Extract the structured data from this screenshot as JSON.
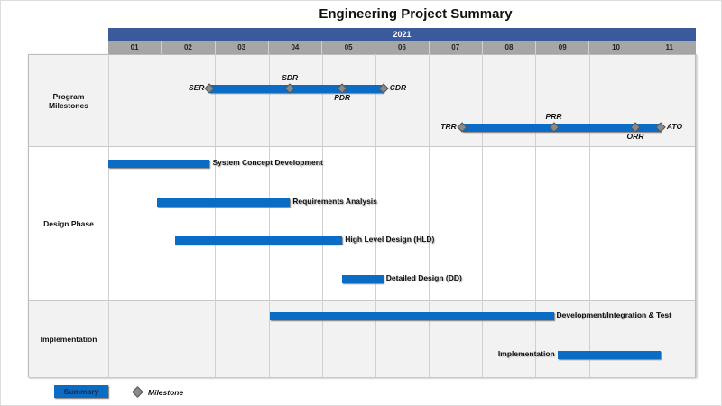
{
  "chart_data": {
    "type": "gantt",
    "title": "Engineering Project Summary",
    "year": "2021",
    "months": [
      "01",
      "02",
      "03",
      "04",
      "05",
      "06",
      "07",
      "08",
      "09",
      "10",
      "11"
    ],
    "x_unit": "months from start of 01",
    "rows": [
      {
        "name": "Program Milestones",
        "shade": "gray",
        "tasks": [
          {
            "label": "",
            "start": 1.9,
            "end": 5.15,
            "lane": 0,
            "milestones": [
              {
                "name": "SER",
                "at": 1.9,
                "pos": "left"
              },
              {
                "name": "SDR",
                "at": 3.4,
                "pos": "above"
              },
              {
                "name": "PDR",
                "at": 4.38,
                "pos": "below"
              },
              {
                "name": "CDR",
                "at": 5.15,
                "pos": "right"
              }
            ]
          },
          {
            "label": "",
            "start": 6.62,
            "end": 10.34,
            "lane": 1,
            "milestones": [
              {
                "name": "TRR",
                "at": 6.62,
                "pos": "left"
              },
              {
                "name": "PRR",
                "at": 8.34,
                "pos": "above"
              },
              {
                "name": "ORR",
                "at": 9.86,
                "pos": "below"
              },
              {
                "name": "ATO",
                "at": 10.34,
                "pos": "right"
              }
            ]
          }
        ]
      },
      {
        "name": "Design Phase",
        "shade": "white",
        "tasks": [
          {
            "label": "System Concept Development",
            "start": 0,
            "end": 1.9,
            "lane": 0
          },
          {
            "label": "Requirements Analysis",
            "start": 0.91,
            "end": 3.4,
            "lane": 1
          },
          {
            "label": "High Level Design (HLD)",
            "start": 1.25,
            "end": 4.38,
            "lane": 2
          },
          {
            "label": "Detailed Design (DD)",
            "start": 4.38,
            "end": 5.15,
            "lane": 3
          }
        ]
      },
      {
        "name": "Implementation",
        "shade": "gray",
        "tasks": [
          {
            "label": "Development/Integration & Test",
            "start": 3.03,
            "end": 8.34,
            "lane": 0
          },
          {
            "label": "Implementation",
            "start": 8.41,
            "end": 10.34,
            "lane": 1,
            "label_pos": "left"
          }
        ]
      }
    ],
    "legend": {
      "summary": "Summary",
      "milestone": "Milestone"
    },
    "colors": {
      "bar": "#0a6cc4",
      "header": "#3a5a9c",
      "milestone": "#8a8a8a"
    }
  }
}
